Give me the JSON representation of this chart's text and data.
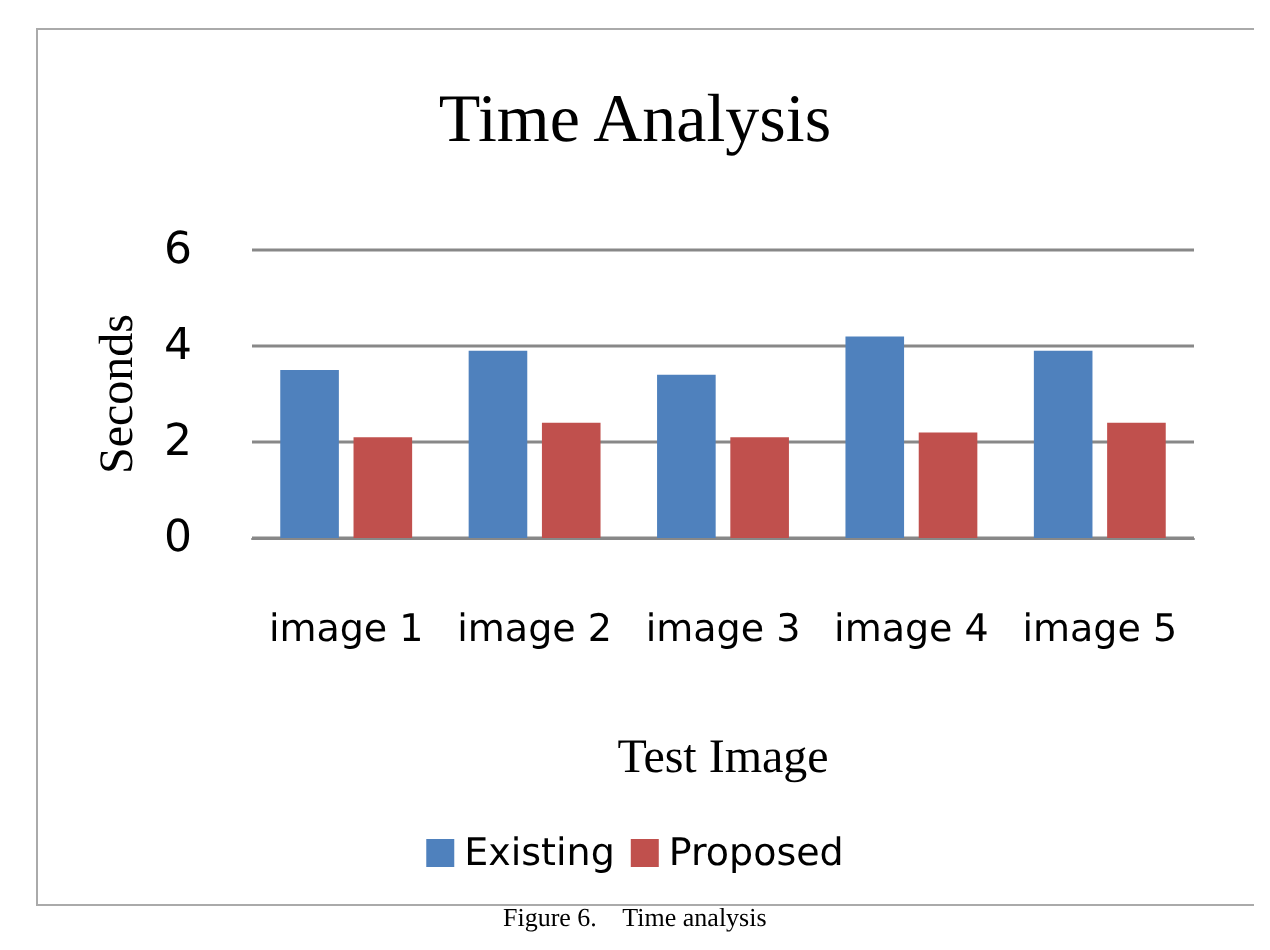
{
  "chart_data": {
    "type": "bar",
    "title": "Time Analysis",
    "xlabel": "Test Image",
    "ylabel": "Seconds",
    "categories": [
      "image 1",
      "image 2",
      "image 3",
      "image 4",
      "image 5"
    ],
    "series": [
      {
        "name": "Existing",
        "color": "#4f81bd",
        "values": [
          3.5,
          3.9,
          3.4,
          4.2,
          3.9
        ]
      },
      {
        "name": "Proposed",
        "color": "#c0504d",
        "values": [
          2.1,
          2.4,
          2.1,
          2.2,
          2.4
        ]
      }
    ],
    "ylim": [
      0,
      6
    ],
    "yticks": [
      0,
      2,
      4,
      6
    ],
    "grid": "y",
    "legend": "bottom",
    "annotations": [
      "Figure 6.    Time analysis"
    ]
  }
}
